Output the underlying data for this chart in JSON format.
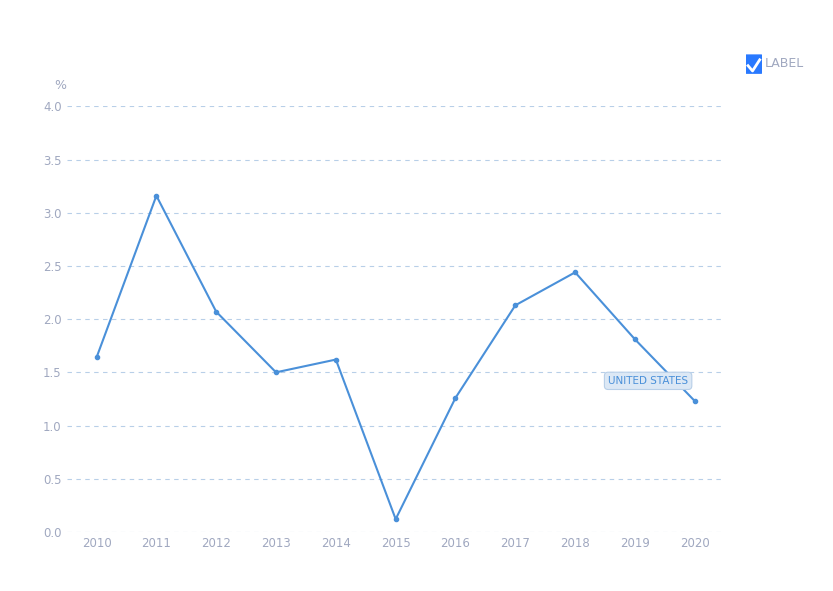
{
  "years": [
    2010,
    2011,
    2012,
    2013,
    2014,
    2015,
    2016,
    2017,
    2018,
    2019,
    2020
  ],
  "values": [
    1.64,
    3.16,
    2.07,
    1.5,
    1.62,
    0.12,
    1.26,
    2.13,
    2.44,
    1.81,
    1.23
  ],
  "line_color": "#4a90d9",
  "ylim": [
    0.0,
    4.0
  ],
  "yticks": [
    0.0,
    0.5,
    1.0,
    1.5,
    2.0,
    2.5,
    3.0,
    3.5,
    4.0
  ],
  "xlim": [
    2009.5,
    2020.5
  ],
  "xticks": [
    2010,
    2011,
    2012,
    2013,
    2014,
    2015,
    2016,
    2017,
    2018,
    2019,
    2020
  ],
  "grid_color": "#b8cfe8",
  "background_color": "#ffffff",
  "label_text": "LABEL",
  "label_checkbox_color": "#2979ff",
  "annotation_text": "UNITED STATES",
  "ylabel_text": "%",
  "ylabel_color": "#a0a8c0",
  "ytick_color": "#a0a8c0",
  "xtick_color": "#a0a8c0",
  "label_color": "#a0a8c0"
}
